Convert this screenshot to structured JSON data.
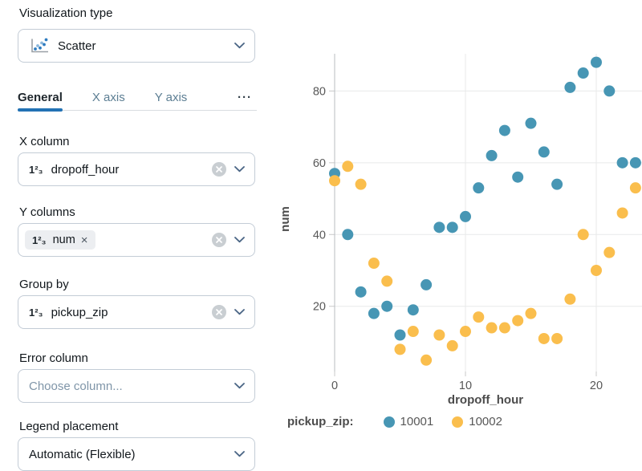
{
  "panel": {
    "viz_type": {
      "label": "Visualization type",
      "value": "Scatter"
    },
    "tabs": [
      {
        "label": "General",
        "active": true
      },
      {
        "label": "X axis",
        "active": false
      },
      {
        "label": "Y axis",
        "active": false
      },
      {
        "label": "···",
        "active": false
      }
    ],
    "icons": {
      "number_glyph": "1²₃"
    },
    "fields": {
      "x_column": {
        "label": "X column",
        "value": "dropoff_hour"
      },
      "y_columns": {
        "label": "Y columns",
        "chip_value": "num",
        "chip_remove_glyph": "×"
      },
      "group_by": {
        "label": "Group by",
        "value": "pickup_zip"
      },
      "error_column": {
        "label": "Error column",
        "placeholder": "Choose column..."
      },
      "legend_placement": {
        "label": "Legend placement",
        "value": "Automatic (Flexible)"
      }
    }
  },
  "chart_data": {
    "type": "scatter",
    "title": "",
    "xlabel": "dropoff_hour",
    "ylabel": "num",
    "x_ticks": [
      0,
      10,
      20
    ],
    "y_ticks": [
      20,
      40,
      60,
      80
    ],
    "xlim": [
      -0.5,
      23.5
    ],
    "ylim": [
      2,
      90
    ],
    "grid": true,
    "legend": {
      "title": "pickup_zip:",
      "position": "bottom"
    },
    "x": [
      0,
      1,
      2,
      3,
      4,
      5,
      6,
      7,
      8,
      9,
      10,
      11,
      12,
      13,
      14,
      15,
      16,
      17,
      18,
      19,
      20,
      21,
      22,
      23
    ],
    "series": [
      {
        "name": "10001",
        "color": "#4796b4",
        "values": [
          57,
          40,
          24,
          18,
          20,
          12,
          19,
          26,
          42,
          42,
          45,
          53,
          62,
          69,
          56,
          71,
          63,
          54,
          81,
          85,
          88,
          80,
          60,
          60
        ]
      },
      {
        "name": "10002",
        "color": "#fabe4d",
        "values": [
          55,
          59,
          54,
          32,
          27,
          8,
          13,
          5,
          12,
          9,
          13,
          17,
          14,
          14,
          16,
          18,
          11,
          11,
          22,
          40,
          30,
          35,
          46,
          53
        ]
      }
    ]
  }
}
